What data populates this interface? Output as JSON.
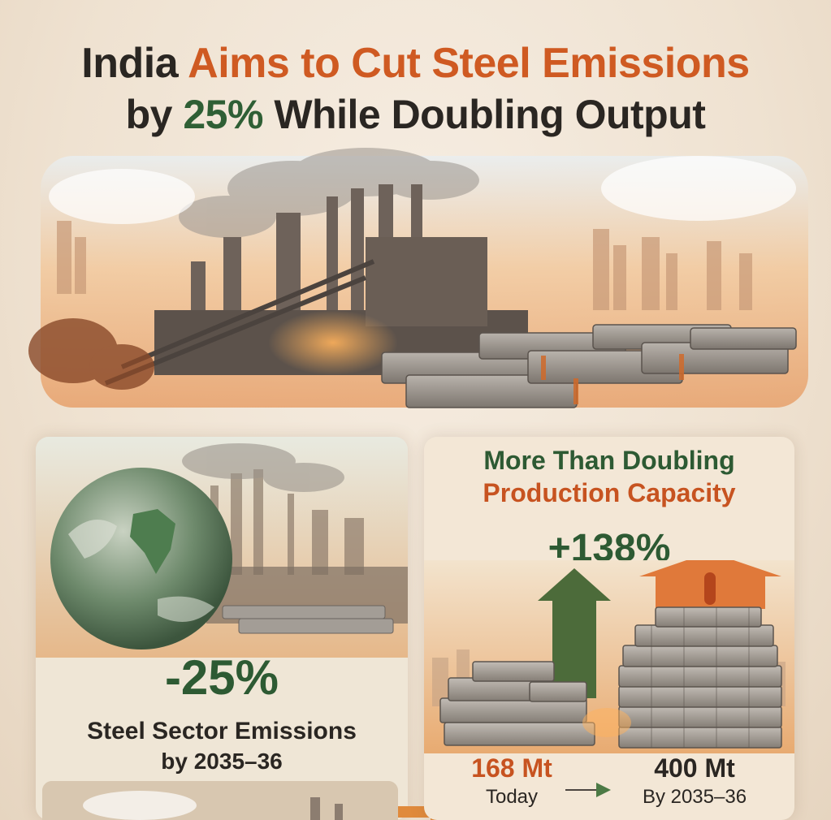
{
  "title": {
    "line1_prefix": "India",
    "line1_highlight": "Aims to Cut Steel Emissions",
    "line2_prefix": "by",
    "line2_highlight": "25%",
    "line2_suffix": "While Doubling Output"
  },
  "emissions_panel": {
    "change": "-25%",
    "label_line1": "Steel Sector Emissions",
    "label_line2": "by 2035–36"
  },
  "capacity_panel": {
    "heading_line1": "More Than Doubling",
    "heading_line2": "Production Capacity",
    "increase": "+138%",
    "current_value": "168 Mt",
    "current_label": "Today",
    "future_value": "400 Mt",
    "future_label": "By 2035–36"
  },
  "colors": {
    "accent_orange": "#cf5a22",
    "accent_green": "#2f5f35",
    "text_dark": "#2a2622",
    "background": "#f1e6d8"
  }
}
